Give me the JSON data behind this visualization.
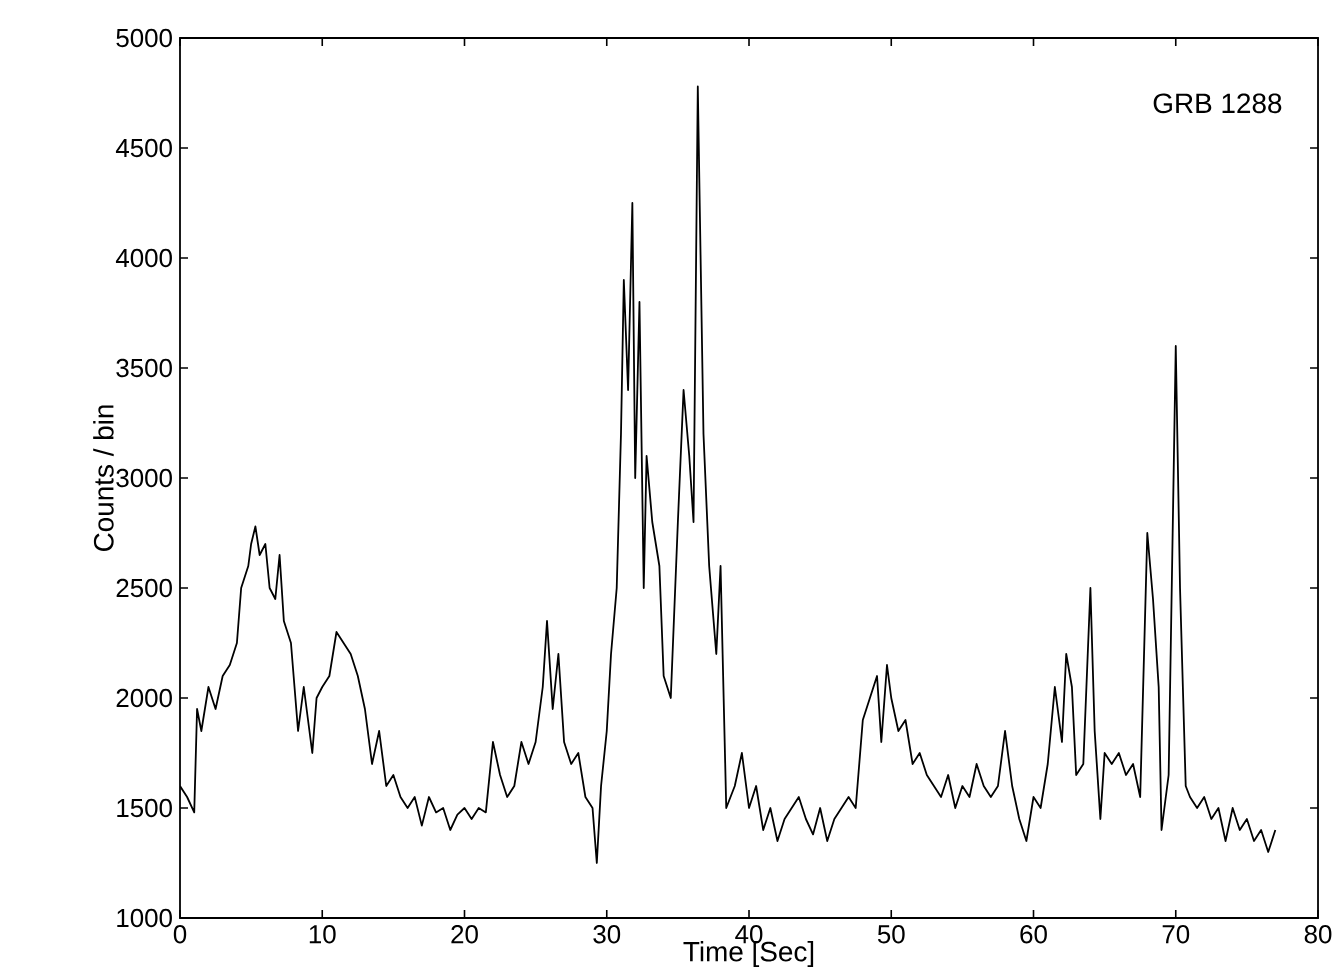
{
  "chart_data": {
    "type": "line",
    "xlabel": "Time [Sec]",
    "ylabel": "Counts / bin",
    "annotations": [
      "GRB 1288"
    ],
    "xlim": [
      0,
      80
    ],
    "ylim": [
      1000,
      5000
    ],
    "xticks": [
      0,
      10,
      20,
      30,
      40,
      50,
      60,
      70,
      80
    ],
    "yticks": [
      1000,
      1500,
      2000,
      2500,
      3000,
      3500,
      4000,
      4500,
      5000
    ],
    "marker": "none",
    "line_style": "solid",
    "series": [
      {
        "color": "#000000",
        "x": [
          0,
          0.5,
          1,
          1.2,
          1.5,
          2,
          2.5,
          3,
          3.5,
          4,
          4.3,
          4.8,
          5,
          5.3,
          5.6,
          6,
          6.3,
          6.7,
          7,
          7.3,
          7.8,
          8.3,
          8.7,
          9.3,
          9.6,
          10,
          10.5,
          11,
          11.5,
          12,
          12.5,
          13,
          13.5,
          14,
          14.5,
          15,
          15.5,
          16,
          16.5,
          17,
          17.5,
          18,
          18.5,
          19,
          19.5,
          20,
          20.5,
          21,
          21.5,
          22,
          22.5,
          23,
          23.5,
          24,
          24.5,
          25,
          25.5,
          25.8,
          26.2,
          26.6,
          27,
          27.5,
          28,
          28.5,
          29,
          29.3,
          29.6,
          30,
          30.3,
          30.7,
          31,
          31.2,
          31.5,
          31.8,
          32,
          32.3,
          32.6,
          32.8,
          33.2,
          33.7,
          34,
          34.5,
          35,
          35.4,
          35.8,
          36.1,
          36.4,
          36.8,
          37.2,
          37.7,
          38,
          38.4,
          39,
          39.5,
          40,
          40.5,
          41,
          41.5,
          42,
          42.5,
          43,
          43.5,
          44,
          44.5,
          45,
          45.5,
          46,
          46.5,
          47,
          47.5,
          48,
          48.5,
          49,
          49.3,
          49.7,
          50,
          50.5,
          51,
          51.5,
          52,
          52.5,
          53,
          53.5,
          54,
          54.5,
          55,
          55.5,
          56,
          56.5,
          57,
          57.5,
          58,
          58.5,
          59,
          59.5,
          60,
          60.5,
          61,
          61.5,
          62,
          62.3,
          62.7,
          63,
          63.5,
          64,
          64.3,
          64.7,
          65,
          65.5,
          66,
          66.5,
          67,
          67.5,
          68,
          68.4,
          68.8,
          69,
          69.5,
          70,
          70.3,
          70.7,
          71,
          71.5,
          72,
          72.5,
          73,
          73.5,
          74,
          74.5,
          75,
          75.5,
          76,
          76.5,
          77
        ],
        "values": [
          1600,
          1550,
          1480,
          1950,
          1850,
          2050,
          1950,
          2100,
          2150,
          2250,
          2500,
          2600,
          2700,
          2780,
          2650,
          2700,
          2500,
          2450,
          2650,
          2350,
          2250,
          1850,
          2050,
          1750,
          2000,
          2050,
          2100,
          2300,
          2250,
          2200,
          2100,
          1950,
          1700,
          1850,
          1600,
          1650,
          1550,
          1500,
          1550,
          1420,
          1550,
          1480,
          1500,
          1400,
          1470,
          1500,
          1450,
          1500,
          1480,
          1800,
          1650,
          1550,
          1600,
          1800,
          1700,
          1800,
          2050,
          2350,
          1950,
          2200,
          1800,
          1700,
          1750,
          1550,
          1500,
          1250,
          1600,
          1850,
          2200,
          2500,
          3200,
          3900,
          3400,
          4250,
          3000,
          3800,
          2500,
          3100,
          2800,
          2600,
          2100,
          2000,
          2800,
          3400,
          3100,
          2800,
          4780,
          3200,
          2600,
          2200,
          2600,
          1500,
          1600,
          1750,
          1500,
          1600,
          1400,
          1500,
          1350,
          1450,
          1500,
          1550,
          1450,
          1380,
          1500,
          1350,
          1450,
          1500,
          1550,
          1500,
          1900,
          2000,
          2100,
          1800,
          2150,
          2000,
          1850,
          1900,
          1700,
          1750,
          1650,
          1600,
          1550,
          1650,
          1500,
          1600,
          1550,
          1700,
          1600,
          1550,
          1600,
          1850,
          1600,
          1450,
          1350,
          1550,
          1500,
          1700,
          2050,
          1800,
          2200,
          2050,
          1650,
          1700,
          2500,
          1850,
          1450,
          1750,
          1700,
          1750,
          1650,
          1700,
          1550,
          2750,
          2450,
          2050,
          1400,
          1650,
          3600,
          2500,
          1600,
          1550,
          1500,
          1550,
          1450,
          1500,
          1350,
          1500,
          1400,
          1450,
          1350,
          1400,
          1300,
          1400
        ]
      }
    ]
  }
}
